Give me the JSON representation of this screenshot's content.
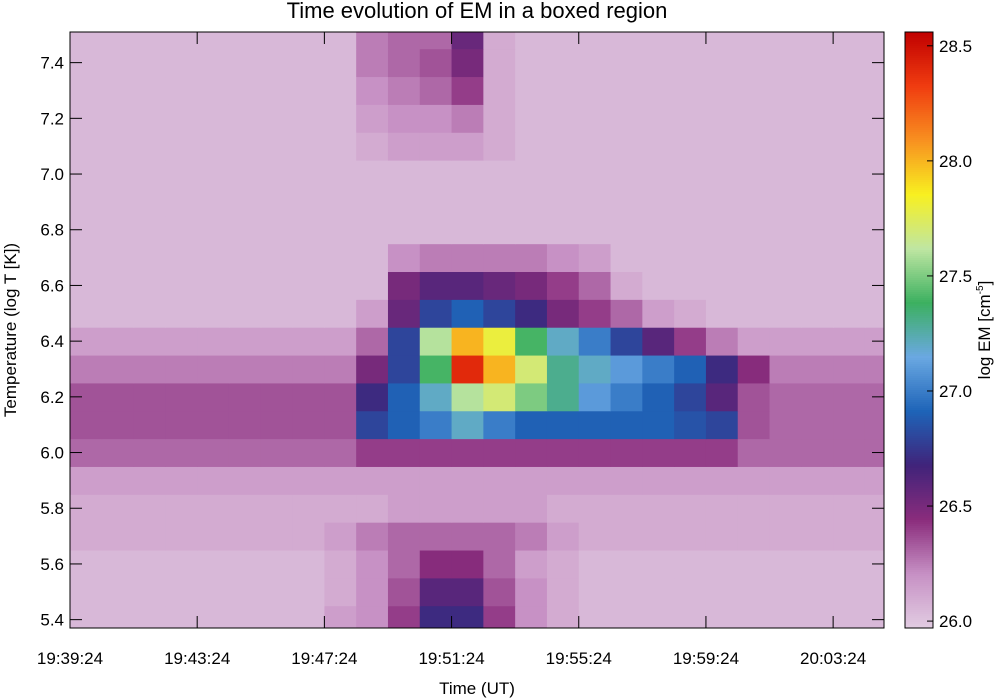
{
  "chart_data": {
    "type": "heatmap",
    "title": "Time evolution of EM in a boxed region",
    "x_label": "Time (UT)",
    "y_label": "Temperature (log T [K])",
    "colorbar_label": "log EM [cm",
    "colorbar_label_sup": "-5",
    "colorbar_label_end": "]",
    "x": [
      "19:39:24",
      "19:40:24",
      "19:41:24",
      "19:42:24",
      "19:43:24",
      "19:44:24",
      "19:45:24",
      "19:46:24",
      "19:47:24",
      "19:48:24",
      "19:49:24",
      "19:50:24",
      "19:51:24",
      "19:52:24",
      "19:53:24",
      "19:54:24",
      "19:55:24",
      "19:56:24",
      "19:57:24",
      "19:58:24",
      "19:59:24",
      "20:00:24",
      "20:01:24",
      "20:02:24",
      "20:03:24",
      "20:04:24"
    ],
    "xlim": [
      "19:39:24",
      "20:05:00"
    ],
    "xticks": [
      "19:39:24",
      "19:43:24",
      "19:47:24",
      "19:51:24",
      "19:55:24",
      "19:59:24",
      "20:03:24"
    ],
    "y": [
      5.4,
      5.5,
      5.6,
      5.7,
      5.8,
      5.9,
      6.0,
      6.1,
      6.2,
      6.3,
      6.4,
      6.5,
      6.6,
      6.7,
      6.8,
      6.9,
      7.0,
      7.1,
      7.2,
      7.3,
      7.4,
      7.5
    ],
    "ylim": [
      5.37,
      7.51
    ],
    "yticks": [
      5.4,
      5.6,
      5.8,
      {
        "value": 6.0,
        "label": "6.0"
      },
      6.2,
      6.4,
      6.6,
      6.8,
      {
        "value": 7.0,
        "label": "7.0"
      },
      7.2,
      7.4
    ],
    "z": [
      [
        26.05,
        26.05,
        26.05,
        26.05,
        26.05,
        26.05,
        26.05,
        26.05,
        26.15,
        26.2,
        26.4,
        26.7,
        26.7,
        26.4,
        26.2,
        26.1,
        26.05,
        26.05,
        26.05,
        26.05,
        26.05,
        26.05,
        26.05,
        26.05,
        26.05,
        26.05
      ],
      [
        26.05,
        26.05,
        26.05,
        26.05,
        26.05,
        26.05,
        26.05,
        26.05,
        26.1,
        26.2,
        26.35,
        26.6,
        26.6,
        26.35,
        26.2,
        26.1,
        26.05,
        26.05,
        26.05,
        26.05,
        26.05,
        26.05,
        26.05,
        26.05,
        26.05,
        26.05
      ],
      [
        26.05,
        26.05,
        26.05,
        26.05,
        26.05,
        26.05,
        26.05,
        26.05,
        26.1,
        26.2,
        26.3,
        26.45,
        26.45,
        26.3,
        26.15,
        26.1,
        26.05,
        26.05,
        26.05,
        26.05,
        26.05,
        26.05,
        26.05,
        26.05,
        26.05,
        26.05
      ],
      [
        26.1,
        26.1,
        26.1,
        26.1,
        26.1,
        26.1,
        26.1,
        26.1,
        26.15,
        26.25,
        26.3,
        26.3,
        26.3,
        26.3,
        26.25,
        26.15,
        26.1,
        26.1,
        26.1,
        26.1,
        26.1,
        26.1,
        26.1,
        26.1,
        26.1,
        26.1
      ],
      [
        26.1,
        26.1,
        26.1,
        26.1,
        26.1,
        26.1,
        26.1,
        26.1,
        26.1,
        26.1,
        26.15,
        26.15,
        26.15,
        26.15,
        26.15,
        26.1,
        26.1,
        26.1,
        26.1,
        26.1,
        26.1,
        26.1,
        26.1,
        26.1,
        26.1,
        26.1
      ],
      [
        26.15,
        26.15,
        26.15,
        26.15,
        26.15,
        26.15,
        26.15,
        26.15,
        26.15,
        26.15,
        26.15,
        26.15,
        26.15,
        26.15,
        26.15,
        26.15,
        26.15,
        26.15,
        26.15,
        26.15,
        26.15,
        26.15,
        26.15,
        26.15,
        26.15,
        26.15
      ],
      [
        26.3,
        26.3,
        26.3,
        26.3,
        26.3,
        26.3,
        26.3,
        26.3,
        26.3,
        26.4,
        26.4,
        26.4,
        26.4,
        26.4,
        26.4,
        26.4,
        26.4,
        26.4,
        26.4,
        26.4,
        26.4,
        26.3,
        26.3,
        26.3,
        26.3,
        26.3
      ],
      [
        26.35,
        26.35,
        26.35,
        26.35,
        26.35,
        26.35,
        26.35,
        26.35,
        26.35,
        26.8,
        26.9,
        27.0,
        27.2,
        27.0,
        26.9,
        26.9,
        26.9,
        26.9,
        26.9,
        26.85,
        26.8,
        26.35,
        26.3,
        26.3,
        26.3,
        26.3
      ],
      [
        26.35,
        26.35,
        26.35,
        26.35,
        26.35,
        26.35,
        26.35,
        26.35,
        26.35,
        26.7,
        26.9,
        27.2,
        27.6,
        27.7,
        27.5,
        27.3,
        27.1,
        27.0,
        26.9,
        26.8,
        26.6,
        26.35,
        26.3,
        26.3,
        26.3,
        26.3
      ],
      [
        26.25,
        26.25,
        26.25,
        26.25,
        26.25,
        26.25,
        26.25,
        26.25,
        26.25,
        26.5,
        26.8,
        27.4,
        28.4,
        28.0,
        27.7,
        27.3,
        27.2,
        27.1,
        27.0,
        26.9,
        26.7,
        26.45,
        26.25,
        26.25,
        26.25,
        26.25
      ],
      [
        26.15,
        26.15,
        26.15,
        26.15,
        26.15,
        26.15,
        26.15,
        26.15,
        26.15,
        26.3,
        26.8,
        27.6,
        28.0,
        27.8,
        27.4,
        27.2,
        27.0,
        26.8,
        26.6,
        26.4,
        26.25,
        26.15,
        26.15,
        26.15,
        26.15,
        26.15
      ],
      [
        26.05,
        26.05,
        26.05,
        26.05,
        26.05,
        26.05,
        26.05,
        26.05,
        26.05,
        26.15,
        26.55,
        26.8,
        26.9,
        26.8,
        26.7,
        26.5,
        26.4,
        26.3,
        26.15,
        26.1,
        26.05,
        26.05,
        26.05,
        26.05,
        26.05,
        26.05
      ],
      [
        26.05,
        26.05,
        26.05,
        26.05,
        26.05,
        26.05,
        26.05,
        26.05,
        26.05,
        26.05,
        26.5,
        26.6,
        26.6,
        26.55,
        26.5,
        26.4,
        26.3,
        26.1,
        26.05,
        26.05,
        26.05,
        26.05,
        26.05,
        26.05,
        26.05,
        26.05
      ],
      [
        26.05,
        26.05,
        26.05,
        26.05,
        26.05,
        26.05,
        26.05,
        26.05,
        26.05,
        26.05,
        26.2,
        26.25,
        26.25,
        26.25,
        26.25,
        26.2,
        26.15,
        26.05,
        26.05,
        26.05,
        26.05,
        26.05,
        26.05,
        26.05,
        26.05,
        26.05
      ],
      [
        26.05,
        26.05,
        26.05,
        26.05,
        26.05,
        26.05,
        26.05,
        26.05,
        26.05,
        26.05,
        26.05,
        26.05,
        26.05,
        26.05,
        26.05,
        26.05,
        26.05,
        26.05,
        26.05,
        26.05,
        26.05,
        26.05,
        26.05,
        26.05,
        26.05,
        26.05
      ],
      [
        26.05,
        26.05,
        26.05,
        26.05,
        26.05,
        26.05,
        26.05,
        26.05,
        26.05,
        26.05,
        26.05,
        26.05,
        26.05,
        26.05,
        26.05,
        26.05,
        26.05,
        26.05,
        26.05,
        26.05,
        26.05,
        26.05,
        26.05,
        26.05,
        26.05,
        26.05
      ],
      [
        26.05,
        26.05,
        26.05,
        26.05,
        26.05,
        26.05,
        26.05,
        26.05,
        26.05,
        26.05,
        26.05,
        26.05,
        26.05,
        26.05,
        26.05,
        26.05,
        26.05,
        26.05,
        26.05,
        26.05,
        26.05,
        26.05,
        26.05,
        26.05,
        26.05,
        26.05
      ],
      [
        26.05,
        26.05,
        26.05,
        26.05,
        26.05,
        26.05,
        26.05,
        26.05,
        26.05,
        26.1,
        26.15,
        26.15,
        26.15,
        26.1,
        26.05,
        26.05,
        26.05,
        26.05,
        26.05,
        26.05,
        26.05,
        26.05,
        26.05,
        26.05,
        26.05,
        26.05
      ],
      [
        26.05,
        26.05,
        26.05,
        26.05,
        26.05,
        26.05,
        26.05,
        26.05,
        26.05,
        26.15,
        26.2,
        26.2,
        26.25,
        26.1,
        26.05,
        26.05,
        26.05,
        26.05,
        26.05,
        26.05,
        26.05,
        26.05,
        26.05,
        26.05,
        26.05,
        26.05
      ],
      [
        26.05,
        26.05,
        26.05,
        26.05,
        26.05,
        26.05,
        26.05,
        26.05,
        26.05,
        26.2,
        26.25,
        26.3,
        26.4,
        26.1,
        26.05,
        26.05,
        26.05,
        26.05,
        26.05,
        26.05,
        26.05,
        26.05,
        26.05,
        26.05,
        26.05,
        26.05
      ],
      [
        26.05,
        26.05,
        26.05,
        26.05,
        26.05,
        26.05,
        26.05,
        26.05,
        26.05,
        26.25,
        26.3,
        26.35,
        26.5,
        26.1,
        26.05,
        26.05,
        26.05,
        26.05,
        26.05,
        26.05,
        26.05,
        26.05,
        26.05,
        26.05,
        26.05,
        26.05
      ],
      [
        26.05,
        26.05,
        26.05,
        26.05,
        26.05,
        26.05,
        26.05,
        26.05,
        26.05,
        26.25,
        26.3,
        26.3,
        26.55,
        26.1,
        26.05,
        26.05,
        26.05,
        26.05,
        26.05,
        26.05,
        26.05,
        26.05,
        26.05,
        26.05,
        26.05,
        26.05
      ]
    ],
    "zlim": [
      25.97,
      28.56
    ],
    "zticks": [
      {
        "value": 26.0,
        "label": "26.0"
      },
      26.5,
      {
        "value": 27.0,
        "label": "27.0"
      },
      27.5,
      {
        "value": 28.0,
        "label": "28.0"
      },
      28.5
    ],
    "colorscale": [
      "#e2cce2",
      "#c690c4",
      "#8a2c7c",
      "#40237a",
      "#1e64b8",
      "#6aa8e2",
      "#3cb060",
      "#bfe6a2",
      "#f8f020",
      "#f89020",
      "#f03c10",
      "#c00000"
    ]
  }
}
